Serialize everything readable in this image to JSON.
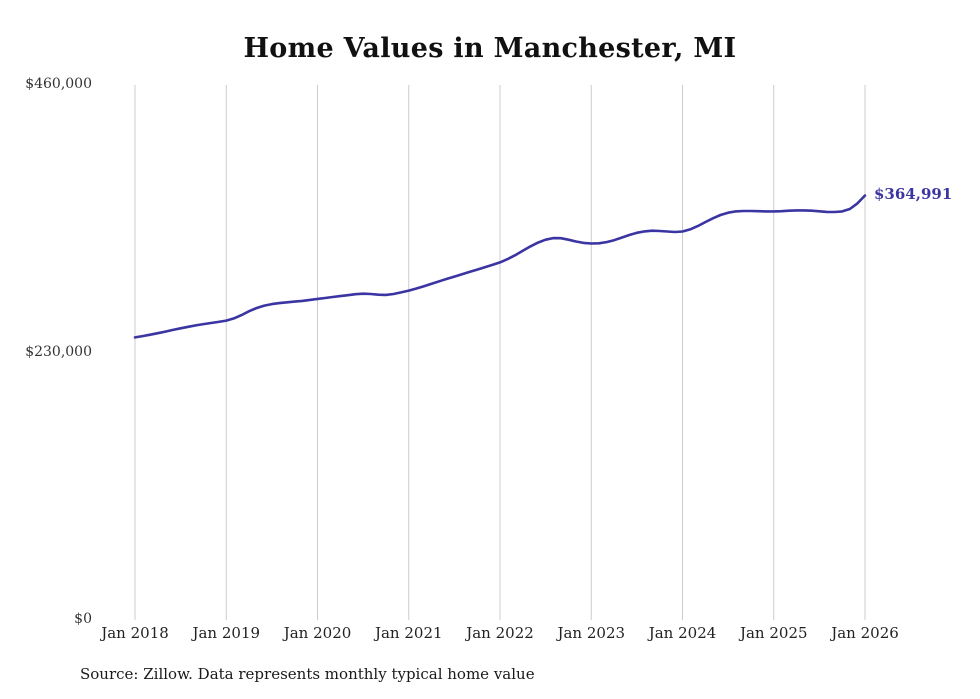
{
  "page": {
    "background_color": "#ffffff"
  },
  "chart": {
    "title": "Home Values in Manchester, MI",
    "source_note": "Source: Zillow. Data represents monthly typical home value",
    "end_label": "$364,991",
    "line_color": "#3a35a2",
    "grid_color": "#cccccc",
    "text_color": "#333333"
  },
  "chart_data": {
    "type": "line",
    "title": "Home Values in Manchester, MI",
    "series_name": "Typical home value (monthly)",
    "x_start": "Jan 2018",
    "x_interval": "month",
    "x_end": "Jan 2026",
    "x_tick_labels": [
      "Jan 2018",
      "Jan 2019",
      "Jan 2020",
      "Jan 2021",
      "Jan 2022",
      "Jan 2023",
      "Jan 2024",
      "Jan 2025",
      "Jan 2026"
    ],
    "y_tick_labels": [
      "$460,000",
      "$230,000",
      "$0"
    ],
    "y_tick_values": [
      460000,
      230000,
      0
    ],
    "ylim": [
      0,
      460000
    ],
    "grid": "vertical-only",
    "legend": "none",
    "annotation": {
      "text": "$364,991",
      "x": "Jan 2026",
      "y": 364991
    },
    "values": [
      243000,
      244100,
      245300,
      246600,
      248000,
      249400,
      250800,
      252100,
      253300,
      254400,
      255400,
      256300,
      257400,
      259300,
      262200,
      265500,
      268300,
      270300,
      271600,
      272500,
      273200,
      273800,
      274400,
      275200,
      276100,
      276900,
      277700,
      278500,
      279300,
      280100,
      280600,
      280300,
      279700,
      279500,
      280300,
      281700,
      283200,
      285000,
      287000,
      289100,
      291200,
      293300,
      295300,
      297300,
      299300,
      301300,
      303300,
      305300,
      307500,
      310300,
      313700,
      317500,
      321200,
      324500,
      327000,
      328400,
      328300,
      327000,
      325400,
      324200,
      323700,
      323900,
      324900,
      326600,
      328800,
      331000,
      332900,
      334100,
      334700,
      334500,
      334000,
      333600,
      334000,
      335800,
      338700,
      342100,
      345400,
      348200,
      350200,
      351300,
      351700,
      351700,
      351500,
      351300,
      351300,
      351500,
      351900,
      352200,
      352200,
      351900,
      351400,
      350900,
      350800,
      351300,
      353400,
      358200,
      364991
    ]
  }
}
